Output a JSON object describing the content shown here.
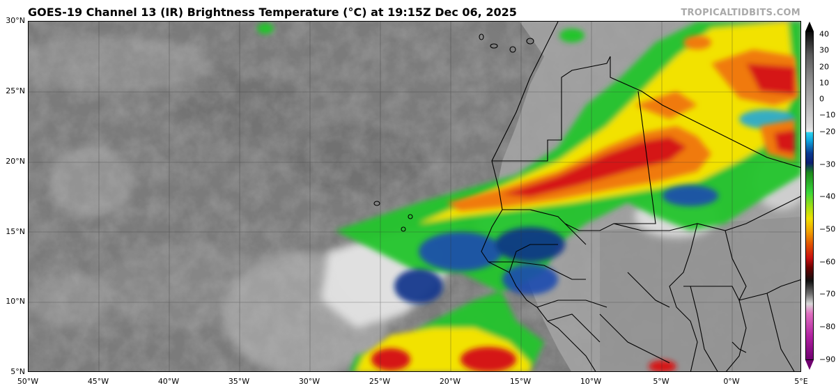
{
  "title": "GOES-19 Channel 13 (IR) Brightness Temperature (°C) at 19:15Z Dec 06, 2025",
  "watermark": "TROPICALTIDBITS.COM",
  "lat_labels": [
    "30°N",
    "25°N",
    "20°N",
    "15°N",
    "10°N",
    "5°N"
  ],
  "lon_labels": [
    "50°W",
    "45°W",
    "40°W",
    "35°W",
    "30°W",
    "25°W",
    "20°W",
    "15°W",
    "10°W",
    "5°W",
    "0°W",
    "5°E"
  ],
  "colorbar": {
    "ticks": [
      "40",
      "30",
      "20",
      "10",
      "0",
      "−10",
      "−20",
      "−30",
      "−40",
      "−50",
      "−60",
      "−70",
      "−80",
      "−90"
    ],
    "range": [
      -90,
      40
    ]
  },
  "colors": {
    "ocean_gray": "#7d7d7d",
    "land_gray": "#9a9a9a",
    "cold_cloud_red": "#d01010",
    "cold_cloud_yellow": "#f5e400",
    "cold_cloud_green": "#20c020",
    "cold_cloud_blue": "#10308a"
  }
}
